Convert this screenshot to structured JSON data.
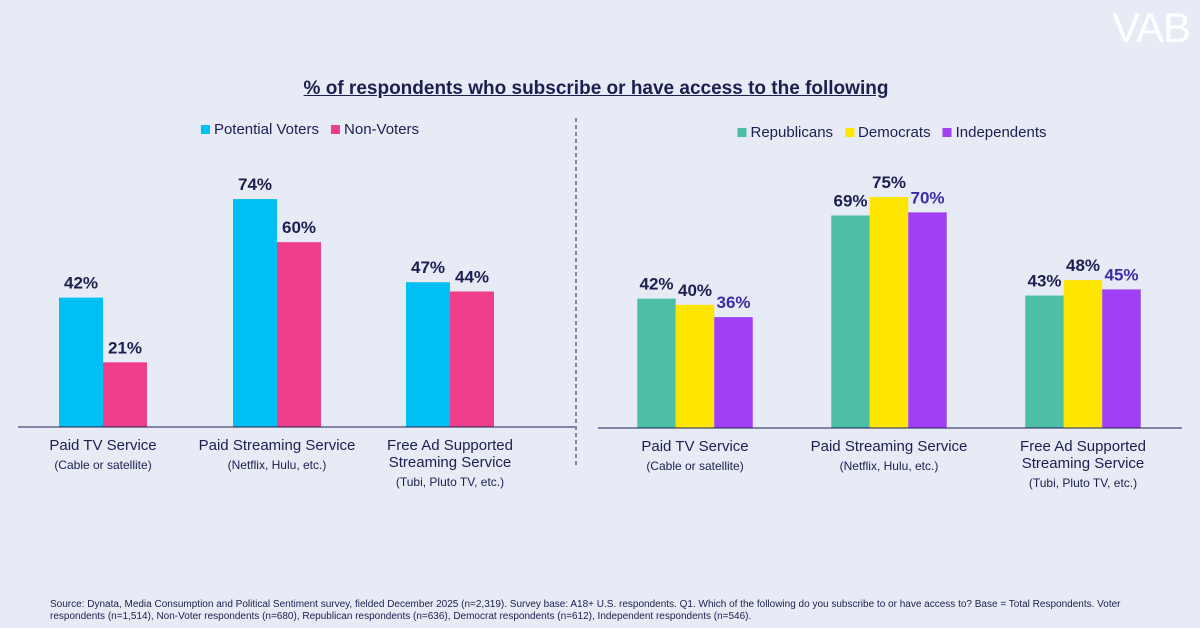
{
  "title": "% of respondents who subscribe or have access to the following",
  "logo": "VAB",
  "source": "Source: Dynata, Media Consumption and Political Sentiment survey, fielded December 2025 (n=2,319). Survey base: A18+ U.S. respondents. Q1. Which of the following do you subscribe to or have access to? Base = Total Respondents. Voter respondents (n=1,514), Non-Voter respondents (n=680), Republican respondents (n=636), Democrat respondents (n=612), Independent respondents (n=546).",
  "chart_data": [
    {
      "type": "bar",
      "categories": [
        "Paid TV Service",
        "Paid Streaming Service",
        "Free Ad Supported Streaming Service"
      ],
      "category_details": [
        "(Cable or satellite)",
        "(Netflix, Hulu, etc.)",
        "(Tubi, Pluto TV, etc.)"
      ],
      "ylim": [
        0,
        100
      ],
      "series": [
        {
          "name": "Potential Voters",
          "color": "#00bff3",
          "label_color": "#1e1e50",
          "values": [
            42,
            74,
            47
          ],
          "value_labels": [
            "42%",
            "74%",
            "47%"
          ]
        },
        {
          "name": "Non-Voters",
          "color": "#ee3d8b",
          "label_color": "#1e1e50",
          "values": [
            21,
            60,
            44
          ],
          "value_labels": [
            "21%",
            "60%",
            "44%"
          ]
        }
      ]
    },
    {
      "type": "bar",
      "categories": [
        "Paid TV Service",
        "Paid Streaming Service",
        "Free Ad Supported Streaming Service"
      ],
      "category_details": [
        "(Cable or satellite)",
        "(Netflix, Hulu, etc.)",
        "(Tubi, Pluto TV, etc.)"
      ],
      "ylim": [
        0,
        100
      ],
      "series": [
        {
          "name": "Republicans",
          "color": "#4cbfa6",
          "label_color": "#1e1e50",
          "values": [
            42,
            69,
            43
          ],
          "value_labels": [
            "42%",
            "69%",
            "43%"
          ]
        },
        {
          "name": "Democrats",
          "color": "#ffe600",
          "label_color": "#1e1e50",
          "values": [
            40,
            75,
            48
          ],
          "value_labels": [
            "40%",
            "75%",
            "48%"
          ]
        },
        {
          "name": "Independents",
          "color": "#a040f5",
          "label_color": "#3b2ca8",
          "values": [
            36,
            70,
            45
          ],
          "value_labels": [
            "36%",
            "70%",
            "45%"
          ]
        }
      ]
    }
  ]
}
